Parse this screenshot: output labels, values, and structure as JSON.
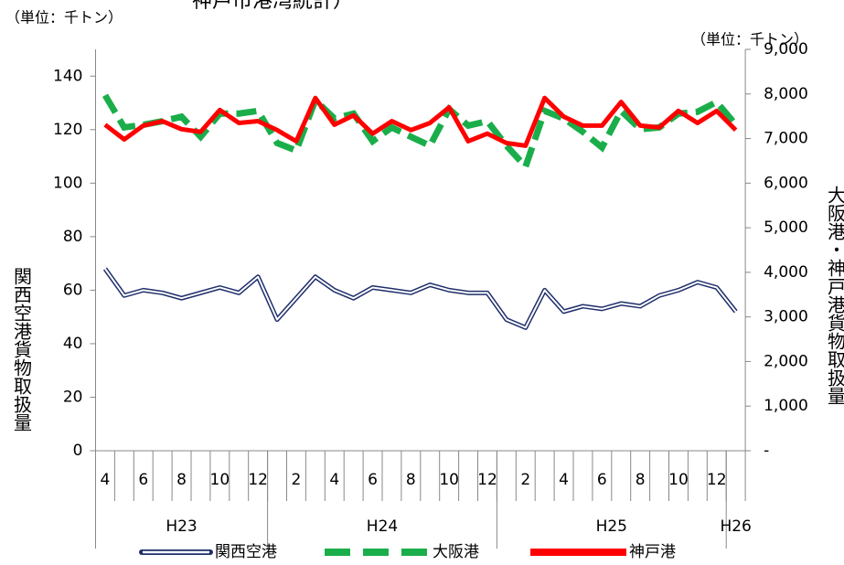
{
  "chart_data": {
    "type": "line",
    "title": "神戸市港湾統計）",
    "unit_left": "（単位：千トン）",
    "unit_right": "（単位：千トン）",
    "y_label": "関西空港貨物取扱量",
    "y2_label": "大阪港・神戸港貨物取扱量",
    "categories": [
      "4",
      null,
      "6",
      null,
      "8",
      null,
      "10",
      null,
      "12",
      null,
      "2",
      null,
      "4",
      null,
      "6",
      null,
      "8",
      null,
      "10",
      null,
      "12",
      null,
      "2",
      null,
      "4",
      null,
      "6",
      null,
      "8",
      null,
      "10",
      null,
      "12",
      null
    ],
    "groups": [
      {
        "label": "H23",
        "count": 9
      },
      {
        "label": "H24",
        "count": 12
      },
      {
        "label": "H25",
        "count": 12
      },
      {
        "label": "H26",
        "count": 1
      }
    ],
    "ylim": [
      0,
      150
    ],
    "yticks": [
      0,
      20,
      40,
      60,
      80,
      100,
      120,
      140
    ],
    "y2lim": [
      0,
      9000
    ],
    "y2ticks": [
      {
        "value": 0,
        "label": "-"
      },
      {
        "value": 1000,
        "label": "1,000"
      },
      {
        "value": 2000,
        "label": "2,000"
      },
      {
        "value": 3000,
        "label": "3,000"
      },
      {
        "value": 4000,
        "label": "4,000"
      },
      {
        "value": 5000,
        "label": "5,000"
      },
      {
        "value": 6000,
        "label": "6,000"
      },
      {
        "value": 7000,
        "label": "7,000"
      },
      {
        "value": 8000,
        "label": "8,000"
      },
      {
        "value": 9000,
        "label": "9,000"
      }
    ],
    "series": [
      {
        "name": "関西空港",
        "color": "#1f2f6b",
        "axis": "y",
        "style": "double",
        "values": [
          68,
          58,
          60,
          59,
          57,
          59,
          61,
          59,
          65,
          49,
          57,
          65,
          60,
          57,
          61,
          60,
          59,
          62,
          60,
          59,
          59,
          49,
          46,
          60,
          52,
          54,
          53,
          55,
          54,
          58,
          60,
          63,
          61,
          52
        ]
      },
      {
        "name": "大阪港",
        "color": "#1aae4a",
        "axis": "y2",
        "style": "dashed",
        "values": [
          7970,
          7250,
          7310,
          7390,
          7490,
          7040,
          7560,
          7560,
          7620,
          6900,
          6730,
          7860,
          7450,
          7560,
          6940,
          7250,
          7040,
          6840,
          7660,
          7290,
          7390,
          6840,
          6370,
          7620,
          7450,
          7150,
          6800,
          7620,
          7210,
          7250,
          7560,
          7600,
          7820,
          7310
        ]
      },
      {
        "name": "神戸港",
        "color": "#ff0000",
        "axis": "y2",
        "style": "solid",
        "values": [
          7310,
          6980,
          7290,
          7390,
          7210,
          7150,
          7640,
          7350,
          7390,
          7190,
          6940,
          7910,
          7310,
          7520,
          7110,
          7390,
          7190,
          7350,
          7700,
          6940,
          7110,
          6900,
          6840,
          7910,
          7490,
          7290,
          7290,
          7820,
          7290,
          7250,
          7620,
          7350,
          7620,
          7190
        ]
      }
    ]
  }
}
